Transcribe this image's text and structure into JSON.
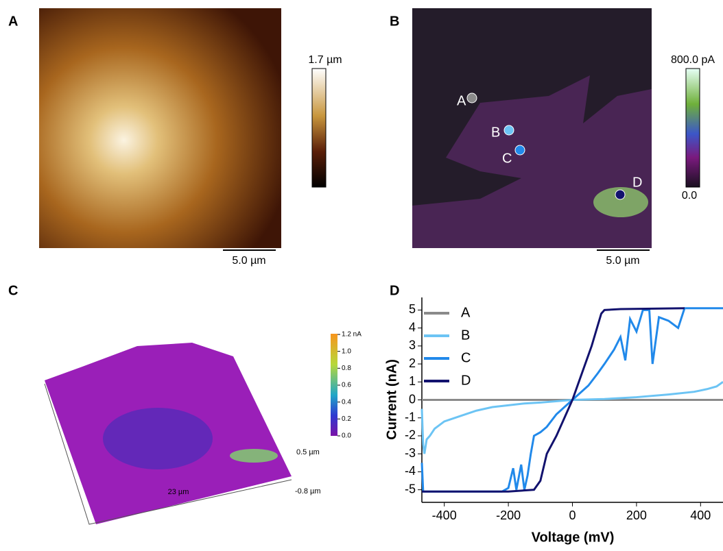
{
  "panels": {
    "labels": [
      "A",
      "B",
      "C",
      "D"
    ],
    "panel_a": {
      "scale_bar": "5.0 µm",
      "colorbar_top": "1.7 µm"
    },
    "panel_b": {
      "scale_bar": "5.0 µm",
      "colorbar_top": "800.0 pA",
      "colorbar_bottom": "0.0",
      "points": [
        "A",
        "B",
        "C",
        "D"
      ]
    },
    "panel_c": {
      "colorbar_ticks": [
        "1.2 nA",
        "1.0",
        "0.8",
        "0.6",
        "0.4",
        "0.2",
        "0.0"
      ],
      "z_top": "0.5 µm",
      "z_bottom": "-0.8 µm",
      "width": "23 µm"
    }
  },
  "chart_data": {
    "type": "line",
    "x_label": "Voltage (mV)",
    "y_label": "Current (nA)",
    "xlim": [
      -470,
      470
    ],
    "ylim": [
      -5.7,
      5.7
    ],
    "xticks": [
      -400,
      -200,
      0,
      200,
      400
    ],
    "yticks": [
      -5,
      -4,
      -3,
      -2,
      -1,
      0,
      1,
      2,
      3,
      4,
      5
    ],
    "series": [
      {
        "name": "A",
        "color": "#8a8a8a",
        "x": [
          -470,
          470
        ],
        "values": [
          0,
          0
        ]
      },
      {
        "name": "B",
        "color": "#6cc4f4",
        "x": [
          -470,
          -466,
          -462,
          -455,
          -445,
          -430,
          -400,
          -350,
          -300,
          -250,
          -200,
          -150,
          -100,
          0,
          100,
          200,
          300,
          380,
          420,
          450,
          470
        ],
        "values": [
          -0.5,
          -2.5,
          -3.0,
          -2.2,
          -2.0,
          -1.6,
          -1.2,
          -0.9,
          -0.6,
          -0.4,
          -0.3,
          -0.2,
          -0.15,
          0,
          0.05,
          0.15,
          0.3,
          0.45,
          0.6,
          0.75,
          1.0
        ]
      },
      {
        "name": "C",
        "color": "#2189ea",
        "x": [
          -470,
          -466,
          -220,
          -200,
          -185,
          -175,
          -160,
          -150,
          -140,
          -130,
          -120,
          -100,
          -80,
          -50,
          0,
          50,
          80,
          100,
          130,
          150,
          165,
          180,
          200,
          220,
          240,
          250,
          270,
          300,
          330,
          350,
          470
        ],
        "values": [
          -3.5,
          -5.1,
          -5.1,
          -4.9,
          -3.8,
          -5.0,
          -3.6,
          -5.0,
          -4.2,
          -3.0,
          -2.0,
          -1.8,
          -1.5,
          -0.8,
          0,
          0.8,
          1.5,
          2.0,
          2.8,
          3.5,
          2.2,
          4.5,
          3.8,
          5.0,
          5.0,
          2.0,
          4.6,
          4.4,
          4.0,
          5.1,
          5.1
        ]
      },
      {
        "name": "D",
        "color": "#12126e",
        "x": [
          -470,
          -200,
          -120,
          -100,
          -80,
          -50,
          -20,
          0,
          30,
          60,
          90,
          100,
          150,
          350
        ],
        "values": [
          -5.1,
          -5.1,
          -5.0,
          -4.5,
          -3.0,
          -2.0,
          -0.8,
          0,
          1.5,
          3.0,
          4.8,
          5.0,
          5.05,
          5.1
        ]
      }
    ]
  }
}
